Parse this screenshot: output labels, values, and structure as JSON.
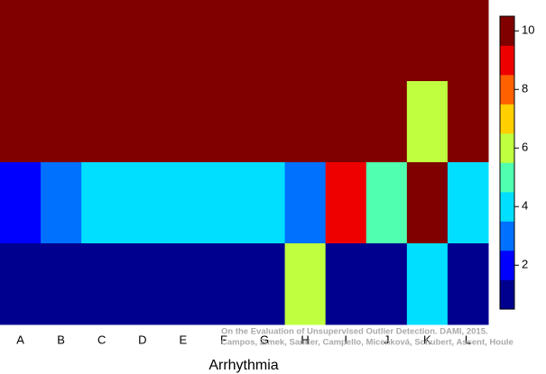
{
  "chart_data": {
    "type": "heatmap",
    "x_label": "Arrhythmia",
    "categories": [
      "A",
      "B",
      "C",
      "D",
      "E",
      "F",
      "G",
      "H",
      "I",
      "J",
      "K",
      "L"
    ],
    "z": [
      [
        10,
        10,
        10,
        10,
        10,
        10,
        10,
        10,
        10,
        10,
        10,
        10
      ],
      [
        10,
        10,
        10,
        10,
        10,
        10,
        10,
        10,
        10,
        10,
        6,
        10
      ],
      [
        2,
        3,
        4,
        4,
        4,
        4,
        4,
        3,
        9,
        5,
        10,
        4
      ],
      [
        1,
        1,
        1,
        1,
        1,
        1,
        1,
        6,
        1,
        1,
        4,
        1
      ]
    ],
    "zlim": [
      0.5,
      10.5
    ],
    "zticks": [
      2,
      4,
      6,
      8,
      10
    ],
    "colors": [
      "#00008f",
      "#0000ff",
      "#0070ff",
      "#00dfff",
      "#50ffaf",
      "#bfff3f",
      "#ffcf00",
      "#ff6000",
      "#ef0000",
      "#800000"
    ],
    "annotations": [
      "On the Evaluation of Unsupervised Outlier Detection. DAMI, 2015.",
      "Campos, Zimek, Sander, Campello, Micenková, Schubert, Assent, Houle"
    ]
  }
}
